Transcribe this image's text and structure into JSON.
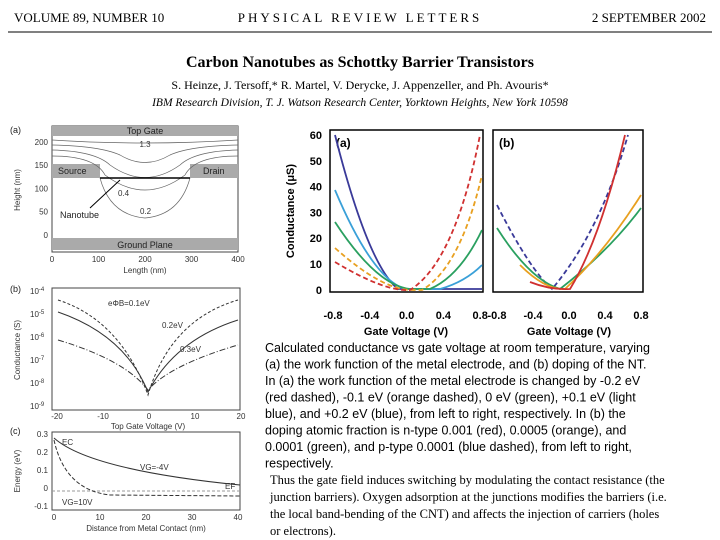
{
  "header": {
    "volume": "VOLUME 89, NUMBER 10",
    "journal": "PHYSICAL REVIEW LETTERS",
    "date": "2 SEPTEMBER 2002"
  },
  "title": "Carbon Nanotubes as Schottky Barrier Transistors",
  "authors": "S. Heinze, J. Tersoff,* R. Martel, V. Derycke, J. Appenzeller, and Ph. Avouris*",
  "affiliation": "IBM Research Division, T. J. Watson Research Center, Yorktown Heights, New York 10598",
  "figure_left": {
    "panel_a": {
      "label": "(a)",
      "top_gate": "Top Gate",
      "source": "Source",
      "drain": "Drain",
      "nanotube": "Nanotube",
      "ground_plane": "Ground Plane",
      "contours": [
        "1.3",
        "0.4",
        "0.2"
      ],
      "y_label": "Height (nm)",
      "x_label": "Length (nm)",
      "yticks": [
        "200",
        "150",
        "100",
        "50",
        "0"
      ],
      "xticks": [
        "0",
        "100",
        "200",
        "300",
        "400"
      ]
    },
    "panel_b": {
      "label": "(b)",
      "y_label": "Conductance (S)",
      "x_label": "Top Gate Voltage (V)",
      "yticks": [
        {
          "base": "10",
          "exp": "-4"
        },
        {
          "base": "10",
          "exp": "-5"
        },
        {
          "base": "10",
          "exp": "-6"
        },
        {
          "base": "10",
          "exp": "-7"
        },
        {
          "base": "10",
          "exp": "-8"
        },
        {
          "base": "10",
          "exp": "-9"
        }
      ],
      "xticks": [
        "-20",
        "-10",
        "0",
        "10",
        "20"
      ],
      "annotations": [
        "eΦB=0.1eV",
        "0.2eV",
        "0.3eV"
      ]
    },
    "panel_c": {
      "label": "(c)",
      "y_label": "Energy (eV)",
      "x_label": "Distance from Metal Contact (nm)",
      "yticks": [
        "0.3",
        "0.2",
        "0.1",
        "0",
        "-0.1"
      ],
      "xticks": [
        "0",
        "10",
        "20",
        "30",
        "40"
      ],
      "annotations": [
        "EC",
        "EF",
        "VG=-4V",
        "VG=10V"
      ]
    }
  },
  "figure_right": {
    "panel_labels": [
      "(a)",
      "(b)"
    ],
    "y_label": "Conductance (μS)",
    "x_label": "Gate Voltage (V)",
    "yticks": [
      "60",
      "50",
      "40",
      "30",
      "20",
      "10",
      "0"
    ],
    "xticks": [
      "-0.8",
      "-0.4",
      "0.0",
      "0.4",
      "0.8"
    ]
  },
  "caption": [
    "Calculated conductance vs gate voltage at room temperature, varying",
    "(a) the work function of the metal electrode, and (b) doping of the NT.",
    "In (a) the work function of the metal electrode is changed by -0.2 eV",
    "(red dashed), -0.1 eV (orange dashed), 0 eV (green), +0.1 eV (light",
    "blue), and +0.2 eV (blue), from left to right, respectively. In (b) the",
    "doping atomic fraction is n-type 0.001 (red), 0.0005 (orange), and",
    "0.0001 (green), and p-type 0.0001 (blue dashed), from left to right,",
    "respectively."
  ],
  "body": [
    "Thus the gate field induces switching by modulating the contact resistance (the",
    "junction barriers). Oxygen adsorption at the junctions modifies the barriers (i.e.",
    "the local band-bending of the CNT) and affects the injection of carriers (holes",
    "or electrons)."
  ]
}
